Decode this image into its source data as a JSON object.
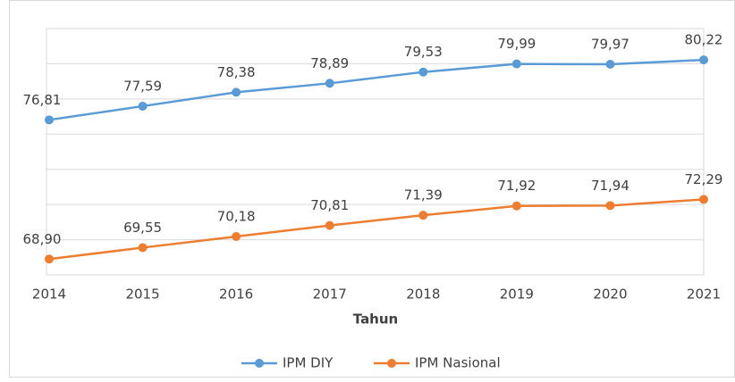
{
  "chart_data": {
    "type": "line",
    "x_label": "Tahun",
    "categories": [
      "2014",
      "2015",
      "2016",
      "2017",
      "2018",
      "2019",
      "2020",
      "2021"
    ],
    "series": [
      {
        "name": "IPM DIY",
        "color": "#5b9bd5",
        "values": [
          76.81,
          77.59,
          78.38,
          78.89,
          79.53,
          79.99,
          79.97,
          80.22
        ],
        "value_labels": [
          "76,81",
          "77,59",
          "78,38",
          "78,89",
          "79,53",
          "79,99",
          "79,97",
          "80,22"
        ]
      },
      {
        "name": "IPM Nasional",
        "color": "#ed7d31",
        "values": [
          68.9,
          69.55,
          70.18,
          70.81,
          71.39,
          71.92,
          71.94,
          72.29
        ],
        "value_labels": [
          "68,90",
          "69,55",
          "70,18",
          "70,81",
          "71,39",
          "71,92",
          "71,94",
          "72,29"
        ]
      }
    ],
    "ylim": [
      68,
      82
    ],
    "yticks": [
      68,
      70,
      72,
      74,
      76,
      78,
      80,
      82
    ],
    "grid": true,
    "legend": "bottom"
  }
}
